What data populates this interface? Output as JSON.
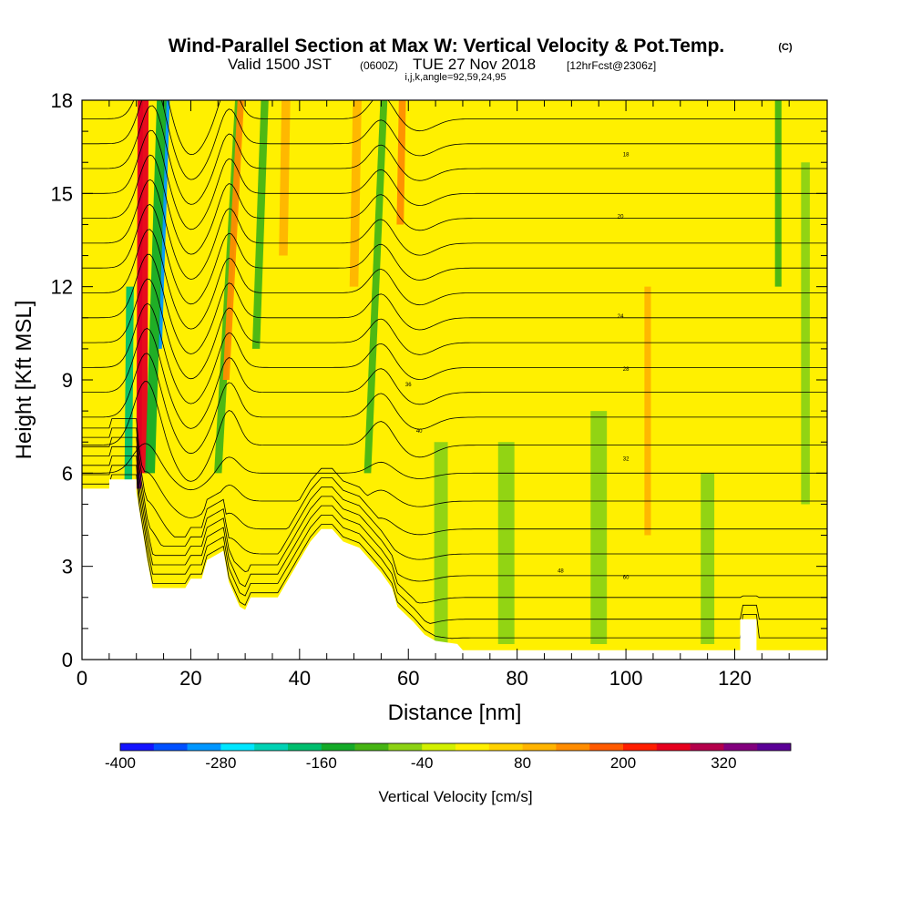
{
  "title": {
    "main": "Wind-Parallel Section at Max W: Vertical Velocity & Pot.Temp.",
    "copyright": "(C)",
    "valid_prefix": "Valid 1500 JST",
    "valid_utc": "(0600Z)",
    "valid_date": "TUE 27 Nov 2018",
    "forecast": "[12hrFcst@2306z]",
    "indices": "i,j,k,angle=92,59,24,95"
  },
  "chart_data": {
    "type": "heatmap",
    "title": "Wind-Parallel Section at Max W: Vertical Velocity & Pot.Temp.",
    "xlabel": "Distance [nm]",
    "ylabel": "Height [Kft MSL]",
    "xlim": [
      0,
      137
    ],
    "ylim": [
      0,
      18
    ],
    "xticks": [
      "0",
      "20",
      "40",
      "60",
      "80",
      "100",
      "120"
    ],
    "yticks": [
      "0",
      "3",
      "6",
      "9",
      "12",
      "15",
      "18"
    ],
    "xtick_values": [
      0,
      20,
      40,
      60,
      80,
      100,
      120
    ],
    "ytick_values": [
      0,
      3,
      6,
      9,
      12,
      15,
      18
    ],
    "background_value_cm_s": 30,
    "terrain_kft": [
      [
        0,
        5.5
      ],
      [
        5,
        5.5
      ],
      [
        5,
        5.8
      ],
      [
        10,
        5.8
      ],
      [
        10,
        5.4
      ],
      [
        11,
        4.3
      ],
      [
        12,
        3.2
      ],
      [
        13,
        2.3
      ],
      [
        19,
        2.3
      ],
      [
        20,
        2.6
      ],
      [
        22,
        2.6
      ],
      [
        23,
        3.2
      ],
      [
        26,
        3.5
      ],
      [
        27,
        2.5
      ],
      [
        29,
        1.7
      ],
      [
        30,
        1.6
      ],
      [
        31,
        2
      ],
      [
        36,
        2
      ],
      [
        38,
        2.6
      ],
      [
        40,
        3.2
      ],
      [
        42,
        3.8
      ],
      [
        44,
        4.2
      ],
      [
        46,
        4.2
      ],
      [
        48,
        3.8
      ],
      [
        51,
        3.6
      ],
      [
        55,
        2.8
      ],
      [
        57,
        2.3
      ],
      [
        58,
        1.7
      ],
      [
        61,
        1.2
      ],
      [
        63,
        0.8
      ],
      [
        65,
        0.6
      ],
      [
        69,
        0.5
      ],
      [
        70,
        0.3
      ],
      [
        121,
        0.3
      ],
      [
        121,
        1.3
      ],
      [
        124,
        1.3
      ],
      [
        124,
        0.3
      ],
      [
        137,
        0.3
      ]
    ],
    "velocity_features_cm_s": [
      {
        "x_nm": 10.5,
        "z_kft": [
          5.5,
          18
        ],
        "w": 340,
        "width_nm": 0.9,
        "slope_nm_per_kft": 0.02
      },
      {
        "x_nm": 11.0,
        "z_kft": [
          6,
          18
        ],
        "w": 260,
        "width_nm": 2.0,
        "slope_nm_per_kft": 0.02
      },
      {
        "x_nm": 14.3,
        "z_kft": [
          10,
          18
        ],
        "w": -300,
        "width_nm": 0.8,
        "slope_nm_per_kft": 0.18
      },
      {
        "x_nm": 12.5,
        "z_kft": [
          6,
          18
        ],
        "w": -150,
        "width_nm": 1.8,
        "slope_nm_per_kft": 0.18
      },
      {
        "x_nm": 8.5,
        "z_kft": [
          5.5,
          12
        ],
        "w": -170,
        "width_nm": 1.4,
        "slope_nm_per_kft": 0.05
      },
      {
        "x_nm": 25,
        "z_kft": [
          6,
          18
        ],
        "w": -110,
        "width_nm": 1.4,
        "slope_nm_per_kft": 0.32
      },
      {
        "x_nm": 26.5,
        "z_kft": [
          9,
          18
        ],
        "w": 120,
        "width_nm": 1.2,
        "slope_nm_per_kft": 0.3
      },
      {
        "x_nm": 32,
        "z_kft": [
          10,
          18
        ],
        "w": -100,
        "width_nm": 1.4,
        "slope_nm_per_kft": 0.2
      },
      {
        "x_nm": 37,
        "z_kft": [
          13,
          18
        ],
        "w": 110,
        "width_nm": 1.6,
        "slope_nm_per_kft": 0.1
      },
      {
        "x_nm": 50,
        "z_kft": [
          12,
          18
        ],
        "w": 110,
        "width_nm": 1.6,
        "slope_nm_per_kft": 0.1
      },
      {
        "x_nm": 52.5,
        "z_kft": [
          6,
          18
        ],
        "w": -110,
        "width_nm": 1.3,
        "slope_nm_per_kft": 0.25
      },
      {
        "x_nm": 58.5,
        "z_kft": [
          14,
          18
        ],
        "w": 120,
        "width_nm": 1.3,
        "slope_nm_per_kft": 0.1
      },
      {
        "x_nm": 66,
        "z_kft": [
          0.5,
          7
        ],
        "w": -60,
        "width_nm": 2.5,
        "slope_nm_per_kft": 0
      },
      {
        "x_nm": 78,
        "z_kft": [
          0.5,
          7
        ],
        "w": -55,
        "width_nm": 3,
        "slope_nm_per_kft": 0
      },
      {
        "x_nm": 95,
        "z_kft": [
          0.5,
          8
        ],
        "w": -55,
        "width_nm": 3,
        "slope_nm_per_kft": 0
      },
      {
        "x_nm": 104,
        "z_kft": [
          4,
          12
        ],
        "w": 100,
        "width_nm": 1.2,
        "slope_nm_per_kft": 0
      },
      {
        "x_nm": 115,
        "z_kft": [
          0.5,
          6
        ],
        "w": -70,
        "width_nm": 2.5,
        "slope_nm_per_kft": 0
      },
      {
        "x_nm": 128,
        "z_kft": [
          12,
          18
        ],
        "w": -90,
        "width_nm": 1.2,
        "slope_nm_per_kft": 0
      },
      {
        "x_nm": 133,
        "z_kft": [
          5,
          16
        ],
        "w": -60,
        "width_nm": 1.6,
        "slope_nm_per_kft": 0
      }
    ],
    "theta_contours": {
      "unit": "C",
      "levels_kft_at_east": [
        0.7,
        1.3,
        2.0,
        2.7,
        3.4,
        4.2,
        5.1,
        6.0,
        6.9,
        7.8,
        8.6,
        9.4,
        10.2,
        11.0,
        11.8,
        12.6,
        13.4,
        14.2,
        15.0,
        15.8,
        16.6,
        17.4
      ],
      "labels": [
        "18",
        "20",
        "24",
        "28",
        "32",
        "36",
        "40",
        "48",
        "60"
      ]
    },
    "colorbar": {
      "label": "Vertical Velocity [cm/s]",
      "ticks": [
        "-400",
        "-280",
        "-160",
        "-40",
        "80",
        "200",
        "320"
      ],
      "tick_values": [
        -400,
        -280,
        -160,
        -40,
        80,
        200,
        320
      ],
      "range": [
        -400,
        400
      ],
      "step": 40,
      "colors": [
        "#1414ff",
        "#0050ff",
        "#0096ff",
        "#00e6ff",
        "#00d2b4",
        "#00be6e",
        "#14aa28",
        "#46b414",
        "#8cd214",
        "#d2f000",
        "#fff000",
        "#ffd200",
        "#ffb400",
        "#ff8c00",
        "#ff5a00",
        "#ff1e00",
        "#e6001e",
        "#b4004b",
        "#82007d",
        "#5a0096"
      ]
    }
  }
}
